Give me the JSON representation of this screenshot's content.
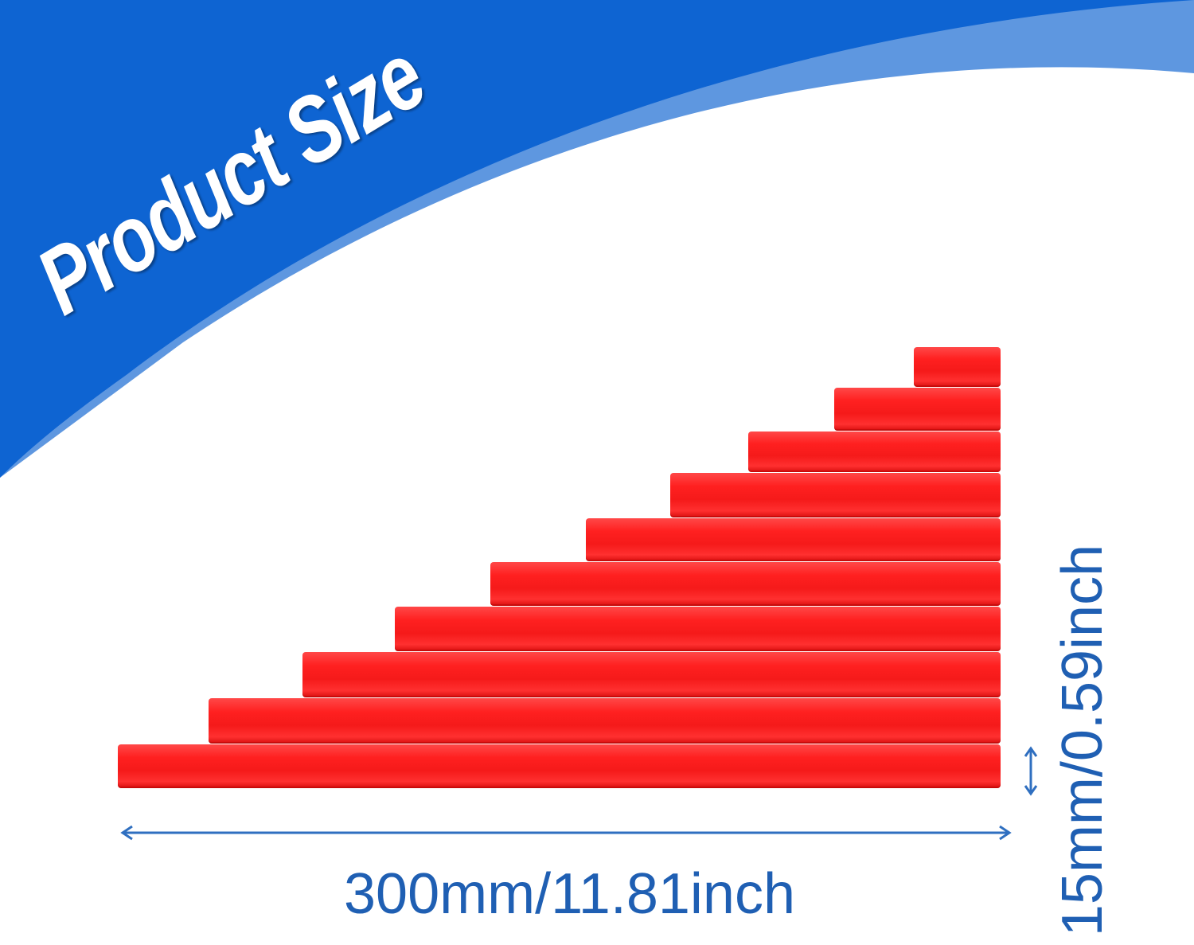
{
  "title": "Product Size",
  "colors": {
    "banner_dark": "#0e64d2",
    "banner_light": "#5e97e0",
    "rod": "#ff2222",
    "dimension": "#1f5fb3"
  },
  "rods": {
    "count": 10
  },
  "dimensions": {
    "length_label": "300mm/11.81inch",
    "width_label": "15mm/0.59inch"
  }
}
